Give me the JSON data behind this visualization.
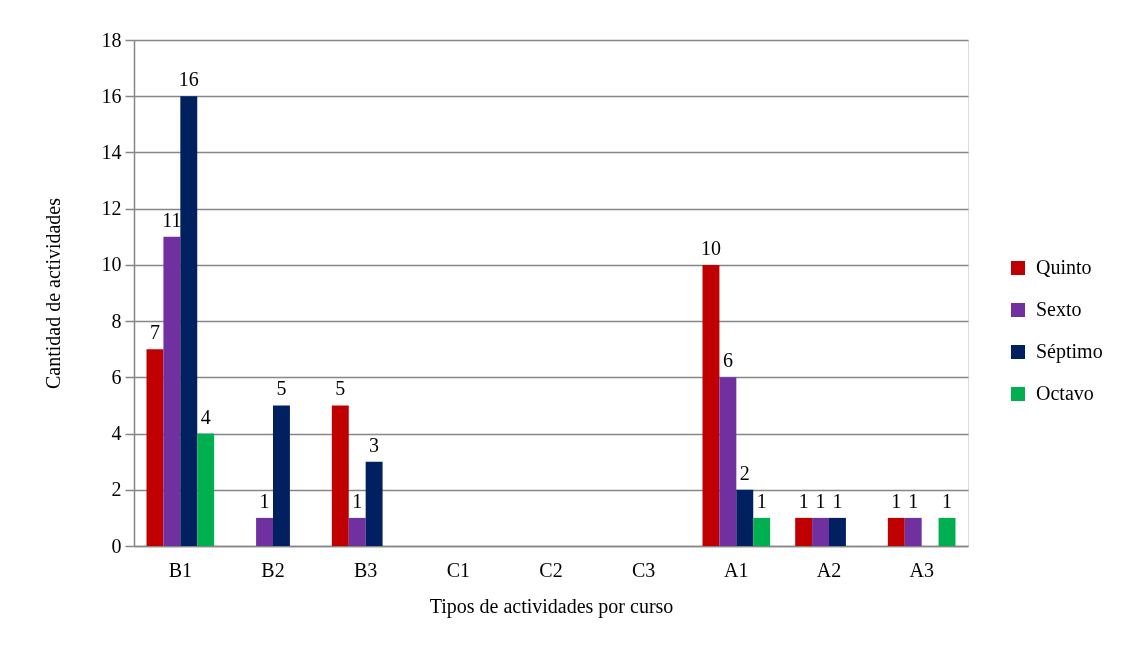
{
  "chart_data": {
    "type": "bar",
    "xlabel": "Tipos de actividades por curso",
    "ylabel": "Cantidad de actividades",
    "categories": [
      "B1",
      "B2",
      "B3",
      "C1",
      "C2",
      "C3",
      "A1",
      "A2",
      "A3"
    ],
    "series": [
      {
        "name": "Quinto",
        "color": "#c00000",
        "values": [
          7,
          null,
          5,
          null,
          null,
          null,
          10,
          1,
          1
        ]
      },
      {
        "name": "Sexto",
        "color": "#7030a0",
        "values": [
          11,
          1,
          1,
          null,
          null,
          null,
          6,
          1,
          1
        ]
      },
      {
        "name": "Séptimo",
        "color": "#002060",
        "values": [
          16,
          5,
          3,
          null,
          null,
          null,
          2,
          1,
          null
        ]
      },
      {
        "name": "Octavo",
        "color": "#00b050",
        "values": [
          4,
          null,
          null,
          null,
          null,
          null,
          1,
          null,
          1
        ]
      }
    ],
    "ylim": [
      0,
      18
    ],
    "yticks": [
      0,
      2,
      4,
      6,
      8,
      10,
      12,
      14,
      16,
      18
    ],
    "grid": "y",
    "legend": "right",
    "data_labels": true
  }
}
